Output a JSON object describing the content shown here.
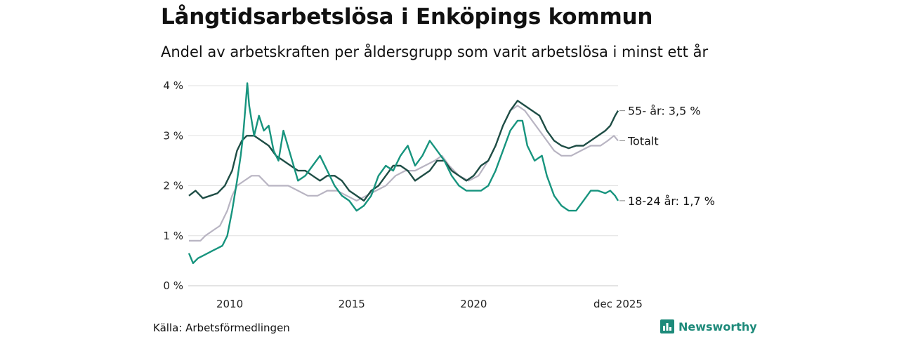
{
  "header": {
    "title": "Långtidsarbetslösa i Enköpings kommun",
    "subtitle": "Andel av arbetskraften per åldersgrupp som varit arbetslösa i minst ett år"
  },
  "footer": {
    "source": "Källa: Arbetsförmedlingen",
    "brand": "Newsworthy",
    "brand_icon": "bar-chart-logo-icon",
    "brand_color": "#1d8a7a"
  },
  "chart_data": {
    "type": "line",
    "title": "Långtidsarbetslösa i Enköpings kommun",
    "xlabel": "",
    "ylabel": "",
    "x_range": [
      2008.3,
      2025.92
    ],
    "ylim": [
      0,
      4
    ],
    "y_ticks": [
      0,
      1,
      2,
      3,
      4
    ],
    "y_tick_labels": [
      "0 %",
      "1 %",
      "2 %",
      "3 %",
      "4 %"
    ],
    "x_ticks": [
      2010,
      2015,
      2020,
      2025.92
    ],
    "x_tick_labels": [
      "2010",
      "2015",
      "2020",
      "dec 2025"
    ],
    "grid": true,
    "series": [
      {
        "name": "Totalt",
        "end_label": "Totalt",
        "color": "#b8b4c2",
        "points": [
          [
            2008.33,
            0.9
          ],
          [
            2008.8,
            0.9
          ],
          [
            2009.0,
            1.0
          ],
          [
            2009.3,
            1.1
          ],
          [
            2009.6,
            1.2
          ],
          [
            2009.9,
            1.5
          ],
          [
            2010.1,
            1.8
          ],
          [
            2010.3,
            2.0
          ],
          [
            2010.6,
            2.1
          ],
          [
            2010.9,
            2.2
          ],
          [
            2011.2,
            2.2
          ],
          [
            2011.6,
            2.0
          ],
          [
            2012.0,
            2.0
          ],
          [
            2012.4,
            2.0
          ],
          [
            2012.8,
            1.9
          ],
          [
            2013.2,
            1.8
          ],
          [
            2013.6,
            1.8
          ],
          [
            2014.0,
            1.9
          ],
          [
            2014.4,
            1.9
          ],
          [
            2014.8,
            1.8
          ],
          [
            2015.2,
            1.7
          ],
          [
            2015.6,
            1.8
          ],
          [
            2016.0,
            1.9
          ],
          [
            2016.4,
            2.0
          ],
          [
            2016.8,
            2.2
          ],
          [
            2017.2,
            2.3
          ],
          [
            2017.6,
            2.3
          ],
          [
            2018.0,
            2.4
          ],
          [
            2018.4,
            2.5
          ],
          [
            2018.7,
            2.6
          ],
          [
            2019.0,
            2.4
          ],
          [
            2019.4,
            2.2
          ],
          [
            2019.8,
            2.1
          ],
          [
            2020.2,
            2.2
          ],
          [
            2020.6,
            2.5
          ],
          [
            2020.9,
            2.8
          ],
          [
            2021.2,
            3.2
          ],
          [
            2021.5,
            3.5
          ],
          [
            2021.8,
            3.6
          ],
          [
            2022.1,
            3.5
          ],
          [
            2022.4,
            3.3
          ],
          [
            2022.7,
            3.1
          ],
          [
            2023.0,
            2.9
          ],
          [
            2023.3,
            2.7
          ],
          [
            2023.6,
            2.6
          ],
          [
            2024.0,
            2.6
          ],
          [
            2024.4,
            2.7
          ],
          [
            2024.8,
            2.8
          ],
          [
            2025.2,
            2.8
          ],
          [
            2025.5,
            2.9
          ],
          [
            2025.75,
            3.0
          ],
          [
            2025.92,
            2.9
          ]
        ]
      },
      {
        "name": "55- år",
        "end_label": "55- år: 3,5 %",
        "color": "#1e4d45",
        "points": [
          [
            2008.33,
            1.8
          ],
          [
            2008.6,
            1.9
          ],
          [
            2008.9,
            1.75
          ],
          [
            2009.2,
            1.8
          ],
          [
            2009.5,
            1.85
          ],
          [
            2009.8,
            2.0
          ],
          [
            2010.1,
            2.3
          ],
          [
            2010.3,
            2.7
          ],
          [
            2010.5,
            2.9
          ],
          [
            2010.7,
            3.0
          ],
          [
            2011.0,
            3.0
          ],
          [
            2011.3,
            2.9
          ],
          [
            2011.6,
            2.8
          ],
          [
            2011.9,
            2.6
          ],
          [
            2012.2,
            2.5
          ],
          [
            2012.5,
            2.4
          ],
          [
            2012.8,
            2.3
          ],
          [
            2013.1,
            2.3
          ],
          [
            2013.4,
            2.2
          ],
          [
            2013.7,
            2.1
          ],
          [
            2014.0,
            2.2
          ],
          [
            2014.3,
            2.2
          ],
          [
            2014.6,
            2.1
          ],
          [
            2014.9,
            1.9
          ],
          [
            2015.2,
            1.8
          ],
          [
            2015.5,
            1.7
          ],
          [
            2015.8,
            1.9
          ],
          [
            2016.1,
            2.0
          ],
          [
            2016.4,
            2.2
          ],
          [
            2016.7,
            2.4
          ],
          [
            2017.0,
            2.4
          ],
          [
            2017.3,
            2.3
          ],
          [
            2017.6,
            2.1
          ],
          [
            2017.9,
            2.2
          ],
          [
            2018.2,
            2.3
          ],
          [
            2018.5,
            2.5
          ],
          [
            2018.8,
            2.5
          ],
          [
            2019.1,
            2.3
          ],
          [
            2019.4,
            2.2
          ],
          [
            2019.7,
            2.1
          ],
          [
            2020.0,
            2.2
          ],
          [
            2020.3,
            2.4
          ],
          [
            2020.6,
            2.5
          ],
          [
            2020.9,
            2.8
          ],
          [
            2021.2,
            3.2
          ],
          [
            2021.5,
            3.5
          ],
          [
            2021.8,
            3.7
          ],
          [
            2022.1,
            3.6
          ],
          [
            2022.4,
            3.5
          ],
          [
            2022.7,
            3.4
          ],
          [
            2023.0,
            3.1
          ],
          [
            2023.3,
            2.9
          ],
          [
            2023.6,
            2.8
          ],
          [
            2023.9,
            2.75
          ],
          [
            2024.2,
            2.8
          ],
          [
            2024.5,
            2.8
          ],
          [
            2024.8,
            2.9
          ],
          [
            2025.1,
            3.0
          ],
          [
            2025.4,
            3.1
          ],
          [
            2025.6,
            3.2
          ],
          [
            2025.8,
            3.4
          ],
          [
            2025.92,
            3.5
          ]
        ]
      },
      {
        "name": "18-24 år",
        "end_label": "18-24 år: 1,7 %",
        "color": "#17947e",
        "points": [
          [
            2008.33,
            0.65
          ],
          [
            2008.5,
            0.45
          ],
          [
            2008.7,
            0.55
          ],
          [
            2008.9,
            0.6
          ],
          [
            2009.1,
            0.65
          ],
          [
            2009.3,
            0.7
          ],
          [
            2009.5,
            0.75
          ],
          [
            2009.7,
            0.8
          ],
          [
            2009.9,
            1.0
          ],
          [
            2010.1,
            1.5
          ],
          [
            2010.3,
            2.1
          ],
          [
            2010.45,
            2.6
          ],
          [
            2010.55,
            3.0
          ],
          [
            2010.65,
            3.6
          ],
          [
            2010.72,
            4.05
          ],
          [
            2010.8,
            3.6
          ],
          [
            2010.9,
            3.3
          ],
          [
            2011.0,
            3.0
          ],
          [
            2011.2,
            3.4
          ],
          [
            2011.4,
            3.1
          ],
          [
            2011.6,
            3.2
          ],
          [
            2011.8,
            2.7
          ],
          [
            2012.0,
            2.5
          ],
          [
            2012.2,
            3.1
          ],
          [
            2012.5,
            2.6
          ],
          [
            2012.8,
            2.1
          ],
          [
            2013.1,
            2.2
          ],
          [
            2013.4,
            2.4
          ],
          [
            2013.7,
            2.6
          ],
          [
            2014.0,
            2.3
          ],
          [
            2014.3,
            2.0
          ],
          [
            2014.6,
            1.8
          ],
          [
            2014.9,
            1.7
          ],
          [
            2015.2,
            1.5
          ],
          [
            2015.5,
            1.6
          ],
          [
            2015.8,
            1.8
          ],
          [
            2016.1,
            2.2
          ],
          [
            2016.4,
            2.4
          ],
          [
            2016.7,
            2.3
          ],
          [
            2017.0,
            2.6
          ],
          [
            2017.3,
            2.8
          ],
          [
            2017.6,
            2.4
          ],
          [
            2017.9,
            2.6
          ],
          [
            2018.2,
            2.9
          ],
          [
            2018.5,
            2.7
          ],
          [
            2018.8,
            2.5
          ],
          [
            2019.1,
            2.2
          ],
          [
            2019.4,
            2.0
          ],
          [
            2019.7,
            1.9
          ],
          [
            2020.0,
            1.9
          ],
          [
            2020.3,
            1.9
          ],
          [
            2020.6,
            2.0
          ],
          [
            2020.9,
            2.3
          ],
          [
            2021.2,
            2.7
          ],
          [
            2021.5,
            3.1
          ],
          [
            2021.8,
            3.3
          ],
          [
            2022.0,
            3.3
          ],
          [
            2022.2,
            2.8
          ],
          [
            2022.5,
            2.5
          ],
          [
            2022.8,
            2.6
          ],
          [
            2023.0,
            2.2
          ],
          [
            2023.3,
            1.8
          ],
          [
            2023.6,
            1.6
          ],
          [
            2023.9,
            1.5
          ],
          [
            2024.2,
            1.5
          ],
          [
            2024.5,
            1.7
          ],
          [
            2024.8,
            1.9
          ],
          [
            2025.1,
            1.9
          ],
          [
            2025.4,
            1.85
          ],
          [
            2025.6,
            1.9
          ],
          [
            2025.8,
            1.8
          ],
          [
            2025.92,
            1.7
          ]
        ]
      }
    ]
  }
}
